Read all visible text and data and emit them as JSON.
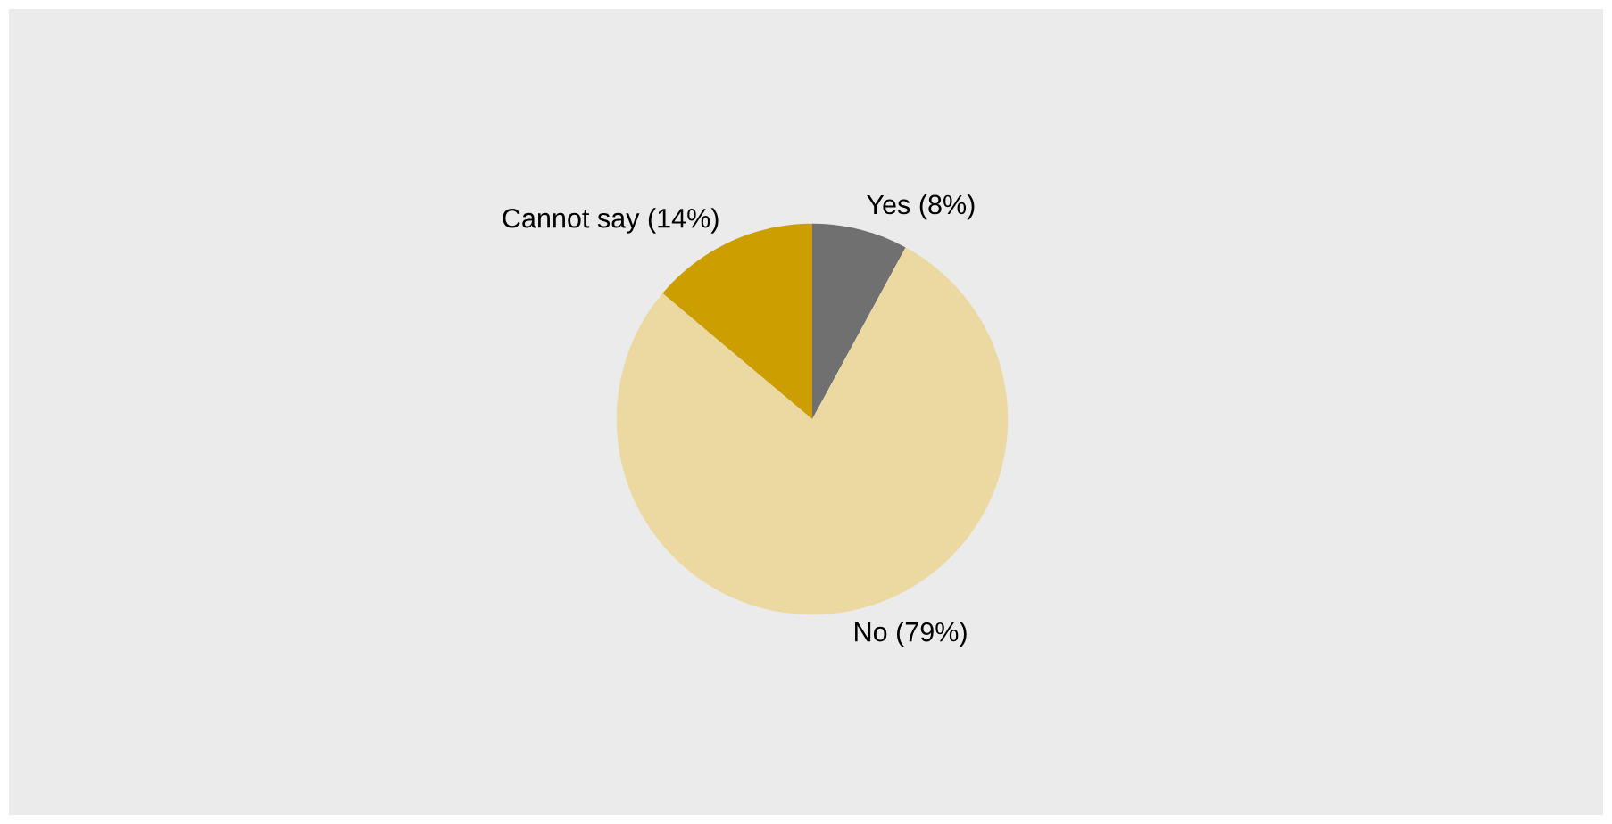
{
  "chart_data": {
    "type": "pie",
    "categories": [
      "Yes (8%)",
      "No (79%)",
      "Cannot say (14%)"
    ],
    "values": [
      8,
      79,
      14
    ],
    "colors": [
      "#707070",
      "#ebd9a1",
      "#cc9e00"
    ],
    "legend": false
  }
}
